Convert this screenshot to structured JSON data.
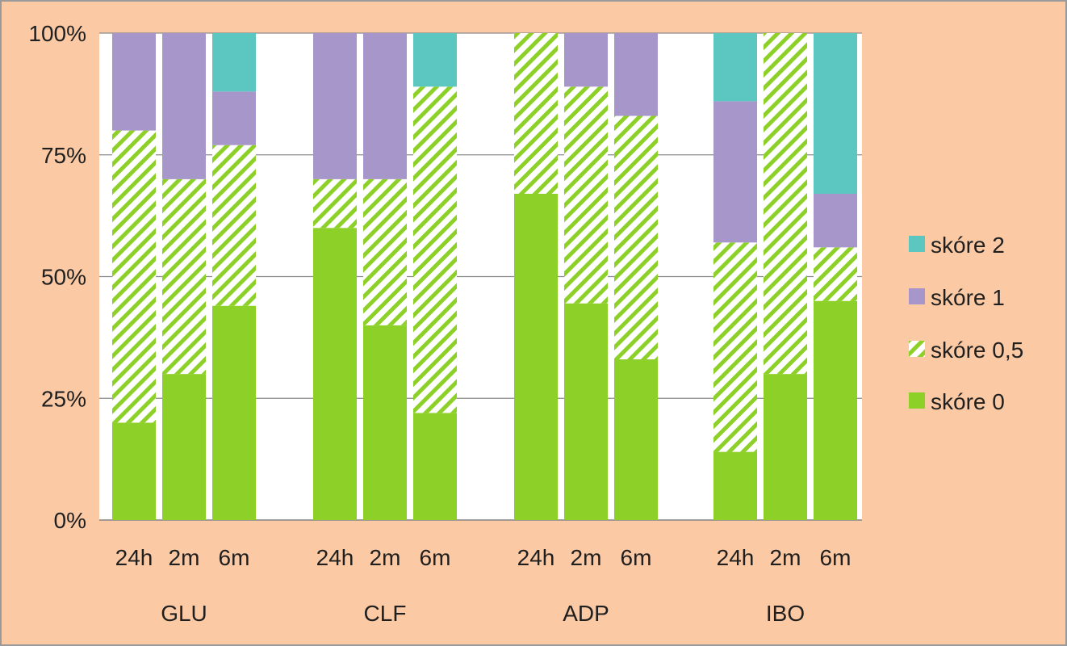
{
  "chart_data": {
    "type": "bar",
    "stacked": true,
    "percent": true,
    "groups": [
      "GLU",
      "CLF",
      "ADP",
      "IBO"
    ],
    "categories": [
      "24h",
      "2m",
      "6m"
    ],
    "series": [
      {
        "name": "skóre 0",
        "color": "#8dd028",
        "pattern": "solid",
        "values": [
          [
            20,
            30,
            44
          ],
          [
            60,
            40,
            22
          ],
          [
            67,
            44.5,
            33
          ],
          [
            14,
            30,
            45
          ]
        ]
      },
      {
        "name": "skóre 0,5",
        "color": "#8dd028",
        "pattern": "diagonal-hatch",
        "values": [
          [
            60,
            40,
            33
          ],
          [
            10,
            30,
            67
          ],
          [
            33,
            44.5,
            50
          ],
          [
            43,
            70,
            11
          ]
        ]
      },
      {
        "name": "skóre 1",
        "color": "#a796c9",
        "pattern": "solid",
        "values": [
          [
            20,
            30,
            11
          ],
          [
            30,
            30,
            0
          ],
          [
            0,
            11,
            17
          ],
          [
            29,
            0,
            11
          ]
        ]
      },
      {
        "name": "skóre 2",
        "color": "#5cc7c0",
        "pattern": "solid",
        "values": [
          [
            0,
            0,
            12
          ],
          [
            0,
            0,
            11
          ],
          [
            0,
            0,
            0
          ],
          [
            14,
            0,
            33
          ]
        ]
      }
    ],
    "ylim": [
      0,
      100
    ],
    "yticks": [
      "0%",
      "25%",
      "50%",
      "75%",
      "100%"
    ],
    "grid": true,
    "legend": "right",
    "legend_order": [
      "skóre 2",
      "skóre 1",
      "skóre 0,5",
      "skóre 0"
    ]
  }
}
